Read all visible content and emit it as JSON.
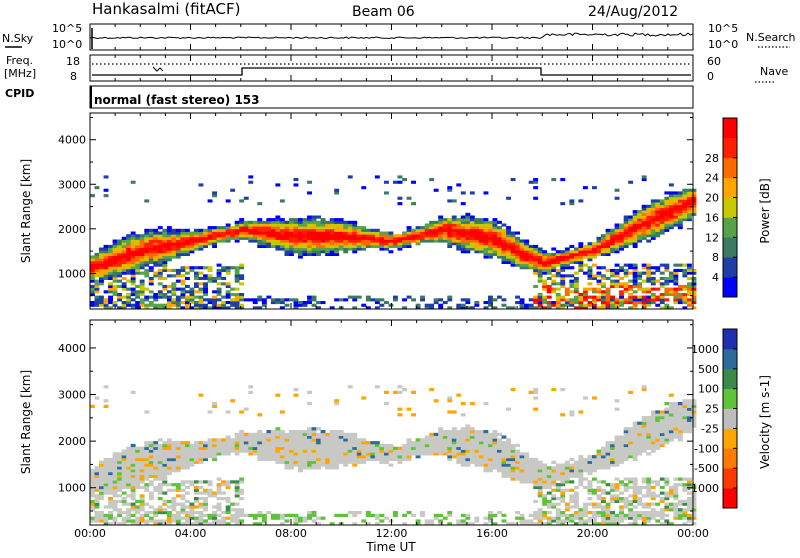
{
  "header": {
    "station": "Hankasalmi (fitACF)",
    "beam": "Beam 06",
    "date": "24/Aug/2012"
  },
  "left_labels": {
    "nsky": "N.Sky",
    "freq": "Freq.",
    "mhz": "[MHz]",
    "cpid": "CPID"
  },
  "right_labels": {
    "nsearch": "N.Search",
    "nave": "Nave"
  },
  "noise_axis": {
    "top": "10^5",
    "bottom": "10^0"
  },
  "freq_axis": {
    "top": "18",
    "bottom": "8"
  },
  "nave_axis": {
    "top": "60",
    "bottom": "0"
  },
  "cpid_text": "normal (fast stereo) 153",
  "colors": {
    "power_scale": [
      "#0000ff",
      "#1f3fa8",
      "#3c7b63",
      "#56a34a",
      "#c8c800",
      "#ffa500",
      "#ff6a00",
      "#ff2000",
      "#ff0000"
    ],
    "velocity_scale": [
      "#1f2fb0",
      "#2e6b9a",
      "#3a8a4a",
      "#5cc33a",
      "#bdbdbd",
      "#ffa500",
      "#ff7a00",
      "#ff3a00",
      "#ff0000"
    ],
    "grey": "#c8c8c4"
  },
  "chart_data": [
    {
      "type": "heatmap",
      "panel": "power",
      "ylabel": "Slant Range [km]",
      "y_ticks": [
        "1000",
        "2000",
        "3000",
        "4000"
      ],
      "ylim": [
        200,
        4600
      ],
      "xlim": [
        "00:00",
        "24:00"
      ],
      "colorbar": {
        "label": "Power [dB]",
        "ticks": [
          "4",
          "8",
          "12",
          "16",
          "20",
          "24",
          "28"
        ],
        "range": [
          0,
          32
        ]
      },
      "band_center_km": [
        {
          "t": 0,
          "km": 1100
        },
        {
          "t": 2,
          "km": 1500
        },
        {
          "t": 4,
          "km": 1700
        },
        {
          "t": 6,
          "km": 1950
        },
        {
          "t": 8,
          "km": 1800
        },
        {
          "t": 10,
          "km": 1800
        },
        {
          "t": 12,
          "km": 1700
        },
        {
          "t": 14,
          "km": 1950
        },
        {
          "t": 16,
          "km": 1750
        },
        {
          "t": 17,
          "km": 1450
        },
        {
          "t": 18,
          "km": 1200
        },
        {
          "t": 20,
          "km": 1500
        },
        {
          "t": 22,
          "km": 2100
        },
        {
          "t": 24,
          "km": 2600
        }
      ]
    },
    {
      "type": "heatmap",
      "panel": "velocity",
      "ylabel": "Slant Range [km]",
      "y_ticks": [
        "1000",
        "2000",
        "3000",
        "4000"
      ],
      "ylim": [
        200,
        4600
      ],
      "xlabel": "Time UT",
      "x_ticks": [
        "00:00",
        "04:00",
        "08:00",
        "12:00",
        "16:00",
        "20:00",
        "00:00"
      ],
      "colorbar": {
        "label": "Velocity [m s-1]",
        "ticks": [
          "1000",
          "500",
          "100",
          "25",
          "-25",
          "-100",
          "-500",
          "-1000"
        ],
        "range": [
          -1200,
          1200
        ]
      }
    }
  ]
}
